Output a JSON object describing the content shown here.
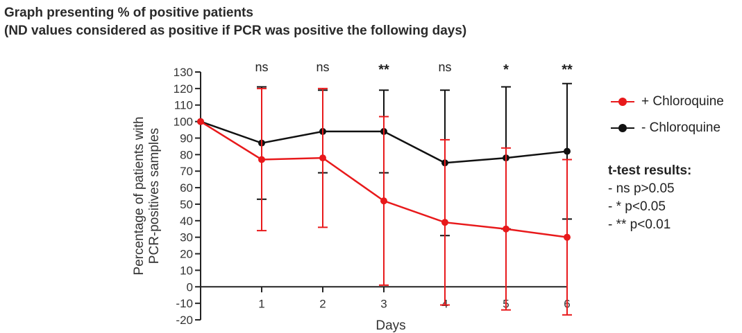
{
  "title_line1": "Graph presenting % of positive patients",
  "title_line2": "(ND values considered as positive if PCR was positive the following days)",
  "ttest": {
    "title": "t-test results:",
    "lines": [
      "- ns p>0.05",
      "- * p<0.05",
      "- ** p<0.01"
    ]
  },
  "chart_data": {
    "type": "line",
    "xlabel": "Days",
    "ylabel_lines": [
      "Percentage of patients with",
      "PCR-positives samples"
    ],
    "x": [
      0,
      1,
      2,
      3,
      4,
      5,
      6
    ],
    "x_tick_labels": [
      "1",
      "2",
      "3",
      "4",
      "5",
      "6"
    ],
    "ylim": [
      -20,
      130
    ],
    "y_ticks": [
      -20,
      -10,
      0,
      10,
      20,
      30,
      40,
      50,
      60,
      70,
      80,
      90,
      100,
      110,
      120,
      130
    ],
    "grid": false,
    "legend_position": "right",
    "series": [
      {
        "name": "+ Chloroquine",
        "color": "#e8191b",
        "values": [
          100,
          77,
          78,
          52,
          39,
          35,
          30
        ],
        "error": [
          0,
          43,
          42,
          51,
          50,
          49,
          47
        ]
      },
      {
        "name": "- Chloroquine",
        "color": "#111111",
        "values": [
          100,
          87,
          94,
          94,
          75,
          78,
          82
        ],
        "error": [
          0,
          34,
          25,
          25,
          44,
          43,
          41
        ]
      }
    ],
    "significance": [
      {
        "day": 1,
        "label": "ns"
      },
      {
        "day": 2,
        "label": "ns"
      },
      {
        "day": 3,
        "label": "**"
      },
      {
        "day": 4,
        "label": "ns"
      },
      {
        "day": 5,
        "label": "*"
      },
      {
        "day": 6,
        "label": "**"
      }
    ]
  }
}
